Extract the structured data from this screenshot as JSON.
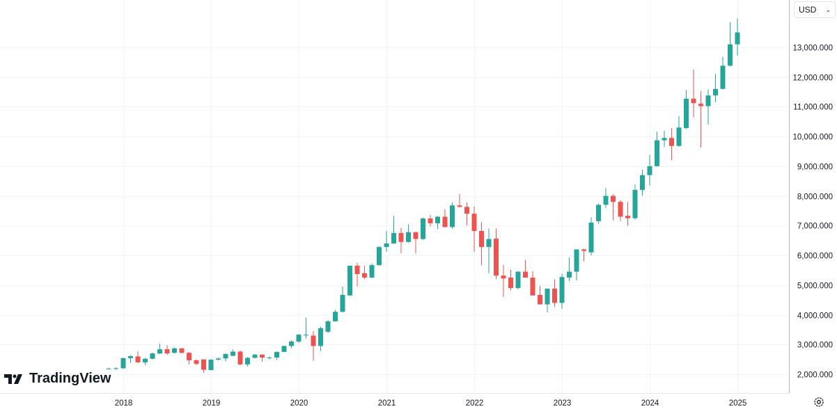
{
  "currency_selector": {
    "label": "USD",
    "chevron": "chevron-down-icon"
  },
  "logo": {
    "text": "TradingView"
  },
  "settings": {
    "icon": "gear-icon"
  },
  "chart_data": {
    "type": "candlestick",
    "interval": "monthly",
    "title": "",
    "xlabel": "",
    "ylabel": "",
    "ylim": [
      1500,
      14200
    ],
    "grid": true,
    "y_ticks": [
      2000,
      3000,
      4000,
      5000,
      6000,
      7000,
      8000,
      9000,
      10000,
      11000,
      12000,
      13000
    ],
    "y_tick_labels": [
      "2,000.000",
      "3,000.000",
      "4,000.000",
      "5,000.000",
      "6,000.000",
      "7,000.000",
      "8,000.000",
      "9,000.000",
      "10,000.000",
      "11,000.000",
      "12,000.000",
      "13,000.000"
    ],
    "x_tick_labels": [
      "2018",
      "2019",
      "2020",
      "2021",
      "2022",
      "2023",
      "2024",
      "2025"
    ],
    "colors": {
      "up": "#26a69a",
      "down": "#ef5350"
    },
    "candles_fields": [
      "date",
      "open",
      "high",
      "low",
      "close"
    ],
    "candles": [
      [
        "2017-11",
        2190,
        2220,
        2160,
        2190
      ],
      [
        "2017-12",
        2190,
        2230,
        2150,
        2200
      ],
      [
        "2018-01",
        2200,
        2560,
        2180,
        2540
      ],
      [
        "2018-02",
        2540,
        2640,
        2380,
        2610
      ],
      [
        "2018-03",
        2600,
        2770,
        2380,
        2400
      ],
      [
        "2018-04",
        2400,
        2560,
        2310,
        2520
      ],
      [
        "2018-05",
        2520,
        2730,
        2500,
        2700
      ],
      [
        "2018-06",
        2700,
        3030,
        2680,
        2840
      ],
      [
        "2018-07",
        2840,
        2980,
        2650,
        2700
      ],
      [
        "2018-08",
        2720,
        2900,
        2700,
        2870
      ],
      [
        "2018-09",
        2870,
        2880,
        2700,
        2720
      ],
      [
        "2018-10",
        2720,
        2750,
        2330,
        2470
      ],
      [
        "2018-11",
        2470,
        2500,
        2300,
        2350
      ],
      [
        "2018-12",
        2500,
        2500,
        2050,
        2150
      ],
      [
        "2019-01",
        2140,
        2500,
        2130,
        2490
      ],
      [
        "2019-02",
        2490,
        2560,
        2460,
        2530
      ],
      [
        "2019-03",
        2530,
        2700,
        2440,
        2680
      ],
      [
        "2019-04",
        2620,
        2830,
        2600,
        2760
      ],
      [
        "2019-05",
        2760,
        2800,
        2300,
        2330
      ],
      [
        "2019-06",
        2330,
        2580,
        2260,
        2550
      ],
      [
        "2019-07",
        2550,
        2680,
        2530,
        2660
      ],
      [
        "2019-08",
        2660,
        2670,
        2420,
        2560
      ],
      [
        "2019-09",
        2560,
        2600,
        2500,
        2560
      ],
      [
        "2019-10",
        2560,
        2760,
        2480,
        2750
      ],
      [
        "2019-11",
        2750,
        2960,
        2740,
        2950
      ],
      [
        "2019-12",
        2950,
        3140,
        2880,
        3100
      ],
      [
        "2020-01",
        3100,
        3360,
        3050,
        3330
      ],
      [
        "2020-02",
        3330,
        3900,
        3200,
        3330
      ],
      [
        "2020-03",
        3300,
        3450,
        2450,
        2950
      ],
      [
        "2020-04",
        2950,
        3600,
        2780,
        3550
      ],
      [
        "2020-05",
        3430,
        3820,
        3380,
        3780
      ],
      [
        "2020-06",
        3780,
        4170,
        3770,
        4100
      ],
      [
        "2020-07",
        4100,
        4950,
        4080,
        4670
      ],
      [
        "2020-08",
        4650,
        5650,
        4640,
        5650
      ],
      [
        "2020-09",
        5650,
        5750,
        4950,
        5370
      ],
      [
        "2020-10",
        5400,
        5650,
        5200,
        5250
      ],
      [
        "2020-11",
        5250,
        5720,
        5230,
        5670
      ],
      [
        "2020-12",
        5670,
        6300,
        5650,
        6280
      ],
      [
        "2021-01",
        6280,
        6820,
        6120,
        6400
      ],
      [
        "2021-02",
        6400,
        7330,
        6380,
        6750
      ],
      [
        "2021-03",
        6750,
        6930,
        6070,
        6450
      ],
      [
        "2021-04",
        6450,
        7040,
        6430,
        6780
      ],
      [
        "2021-05",
        6780,
        6790,
        6070,
        6550
      ],
      [
        "2021-06",
        6550,
        7270,
        6520,
        7240
      ],
      [
        "2021-07",
        7240,
        7360,
        6970,
        7080
      ],
      [
        "2021-08",
        7080,
        7320,
        6880,
        7300
      ],
      [
        "2021-09",
        7300,
        7550,
        6950,
        6950
      ],
      [
        "2021-10",
        6950,
        7780,
        6900,
        7680
      ],
      [
        "2021-11",
        7680,
        8060,
        7620,
        7630
      ],
      [
        "2021-12",
        7630,
        7780,
        7000,
        7400
      ],
      [
        "2022-01",
        7400,
        7640,
        6120,
        6820
      ],
      [
        "2022-02",
        6820,
        7120,
        5670,
        6280
      ],
      [
        "2022-03",
        6280,
        6900,
        5400,
        6550
      ],
      [
        "2022-04",
        6560,
        6900,
        5200,
        5320
      ],
      [
        "2022-05",
        5320,
        5680,
        4600,
        5220
      ],
      [
        "2022-06",
        5250,
        5520,
        4820,
        4900
      ],
      [
        "2022-07",
        4900,
        5470,
        4850,
        5450
      ],
      [
        "2022-08",
        5450,
        5850,
        5330,
        5250
      ],
      [
        "2022-09",
        5250,
        5470,
        4650,
        4650
      ],
      [
        "2022-10",
        4670,
        4970,
        4350,
        4350
      ],
      [
        "2022-11",
        4350,
        4880,
        4080,
        4880
      ],
      [
        "2022-12",
        4880,
        5190,
        4260,
        4400
      ],
      [
        "2023-01",
        4400,
        5380,
        4200,
        5270
      ],
      [
        "2023-02",
        5250,
        5930,
        5130,
        5450
      ],
      [
        "2023-03",
        5450,
        6200,
        5160,
        6200
      ],
      [
        "2023-04",
        6200,
        6220,
        5800,
        6150
      ],
      [
        "2023-05",
        6100,
        7280,
        6000,
        7100
      ],
      [
        "2023-06",
        7150,
        7740,
        7060,
        7700
      ],
      [
        "2023-07",
        7700,
        8260,
        7590,
        8000
      ],
      [
        "2023-08",
        8000,
        8050,
        7180,
        7800
      ],
      [
        "2023-09",
        7800,
        7860,
        7150,
        7300
      ],
      [
        "2023-10",
        7330,
        7800,
        7000,
        7250
      ],
      [
        "2023-11",
        7250,
        8380,
        7200,
        8200
      ],
      [
        "2023-12",
        8200,
        8880,
        8000,
        8700
      ],
      [
        "2024-01",
        8700,
        9380,
        8350,
        9000
      ],
      [
        "2024-02",
        9000,
        10160,
        8990,
        9870
      ],
      [
        "2024-03",
        9870,
        10200,
        9640,
        9950
      ],
      [
        "2024-04",
        9950,
        10280,
        9200,
        9680
      ],
      [
        "2024-05",
        9680,
        10680,
        9650,
        10300
      ],
      [
        "2024-06",
        10280,
        11560,
        10250,
        11270
      ],
      [
        "2024-07",
        11270,
        12250,
        10640,
        11120
      ],
      [
        "2024-08",
        11100,
        11520,
        9630,
        11020
      ],
      [
        "2024-09",
        11020,
        11580,
        10400,
        11380
      ],
      [
        "2024-10",
        11380,
        12100,
        11150,
        11600
      ],
      [
        "2024-11",
        11600,
        12680,
        11580,
        12380
      ],
      [
        "2024-12",
        12380,
        13850,
        12360,
        13100
      ],
      [
        "2025-01",
        13100,
        13970,
        12720,
        13500
      ]
    ]
  }
}
